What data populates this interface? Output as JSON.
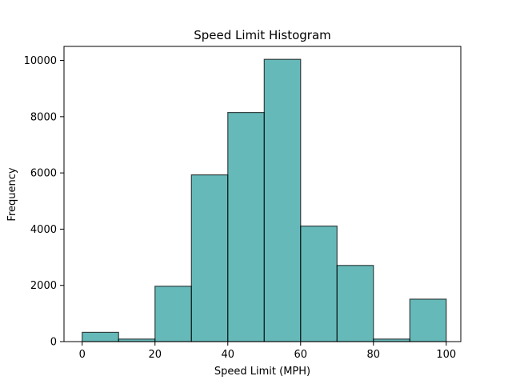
{
  "chart_data": {
    "type": "bar",
    "title": "Speed Limit Histogram",
    "xlabel": "Speed Limit (MPH)",
    "ylabel": "Frequency",
    "bins": [
      {
        "start": 0,
        "end": 10,
        "count": 330
      },
      {
        "start": 10,
        "end": 20,
        "count": 90
      },
      {
        "start": 20,
        "end": 30,
        "count": 1970
      },
      {
        "start": 30,
        "end": 40,
        "count": 5930
      },
      {
        "start": 40,
        "end": 50,
        "count": 8150
      },
      {
        "start": 50,
        "end": 60,
        "count": 10040
      },
      {
        "start": 60,
        "end": 70,
        "count": 4110
      },
      {
        "start": 70,
        "end": 80,
        "count": 2710
      },
      {
        "start": 80,
        "end": 90,
        "count": 90
      },
      {
        "start": 90,
        "end": 100,
        "count": 1510
      }
    ],
    "xlim": [
      -5,
      104
    ],
    "ylim": [
      0,
      10500
    ],
    "x_ticks": [
      0,
      20,
      40,
      60,
      80,
      100
    ],
    "y_ticks": [
      0,
      2000,
      4000,
      6000,
      8000,
      10000
    ],
    "bar_color": "#008b8b",
    "bar_opacity": 0.6,
    "edge_color": "#000000",
    "grid": false,
    "legend": "none"
  }
}
